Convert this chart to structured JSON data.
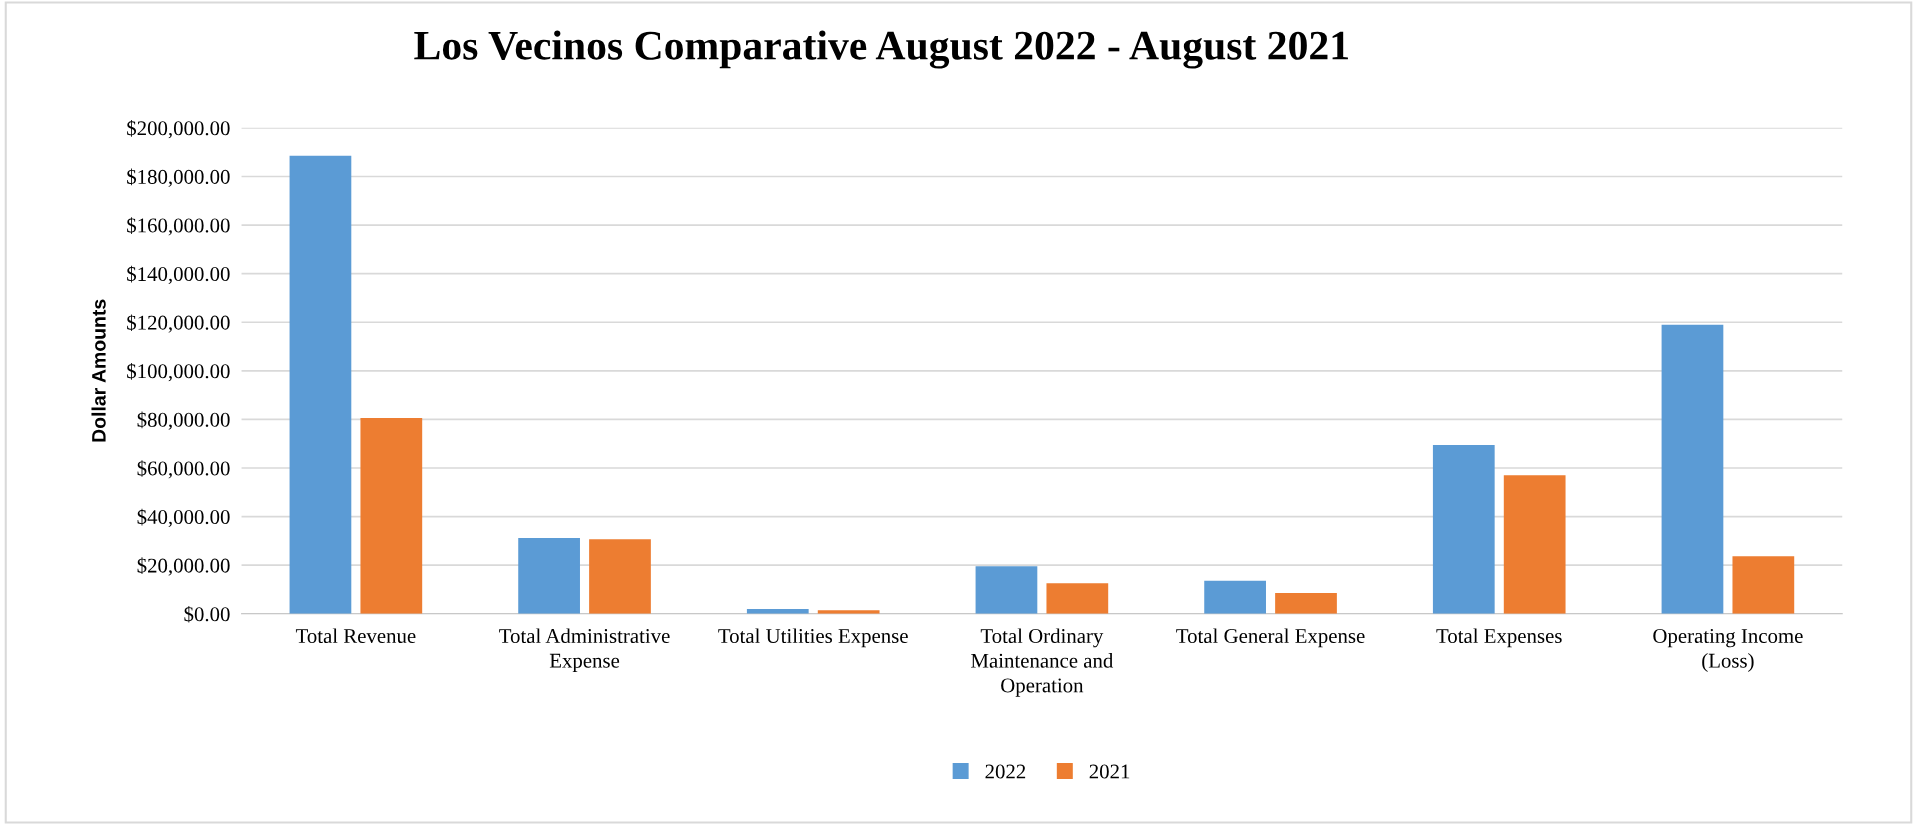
{
  "chart_data": {
    "type": "bar",
    "title": "Los Vecinos Comparative August 2022 - August 2021",
    "ylabel": "Dollar Amounts",
    "categories": [
      "Total Revenue",
      "Total Administrative Expense",
      "Total Utilities Expense",
      "Total Ordinary Maintenance and Operation",
      "Total General Expense",
      "Total Expenses",
      "Operating Income (Loss)"
    ],
    "series": [
      {
        "name": "2022",
        "color": "#5b9bd5",
        "values": [
          188500,
          31200,
          2000,
          19600,
          13600,
          69500,
          119000
        ]
      },
      {
        "name": "2021",
        "color": "#ed7d31",
        "values": [
          80600,
          30700,
          1500,
          12600,
          8600,
          57000,
          23700
        ]
      }
    ],
    "ylim": [
      0,
      200000
    ],
    "yticks": [
      {
        "value": 0,
        "label": "$0.00"
      },
      {
        "value": 20000,
        "label": "$20,000.00"
      },
      {
        "value": 40000,
        "label": "$40,000.00"
      },
      {
        "value": 60000,
        "label": "$60,000.00"
      },
      {
        "value": 80000,
        "label": "$80,000.00"
      },
      {
        "value": 100000,
        "label": "$100,000.00"
      },
      {
        "value": 120000,
        "label": "$120,000.00"
      },
      {
        "value": 140000,
        "label": "$140,000.00"
      },
      {
        "value": 160000,
        "label": "$160,000.00"
      },
      {
        "value": 180000,
        "label": "$180,000.00"
      },
      {
        "value": 200000,
        "label": "$200,000.00"
      }
    ],
    "grid": "y",
    "legend": "bottom"
  }
}
